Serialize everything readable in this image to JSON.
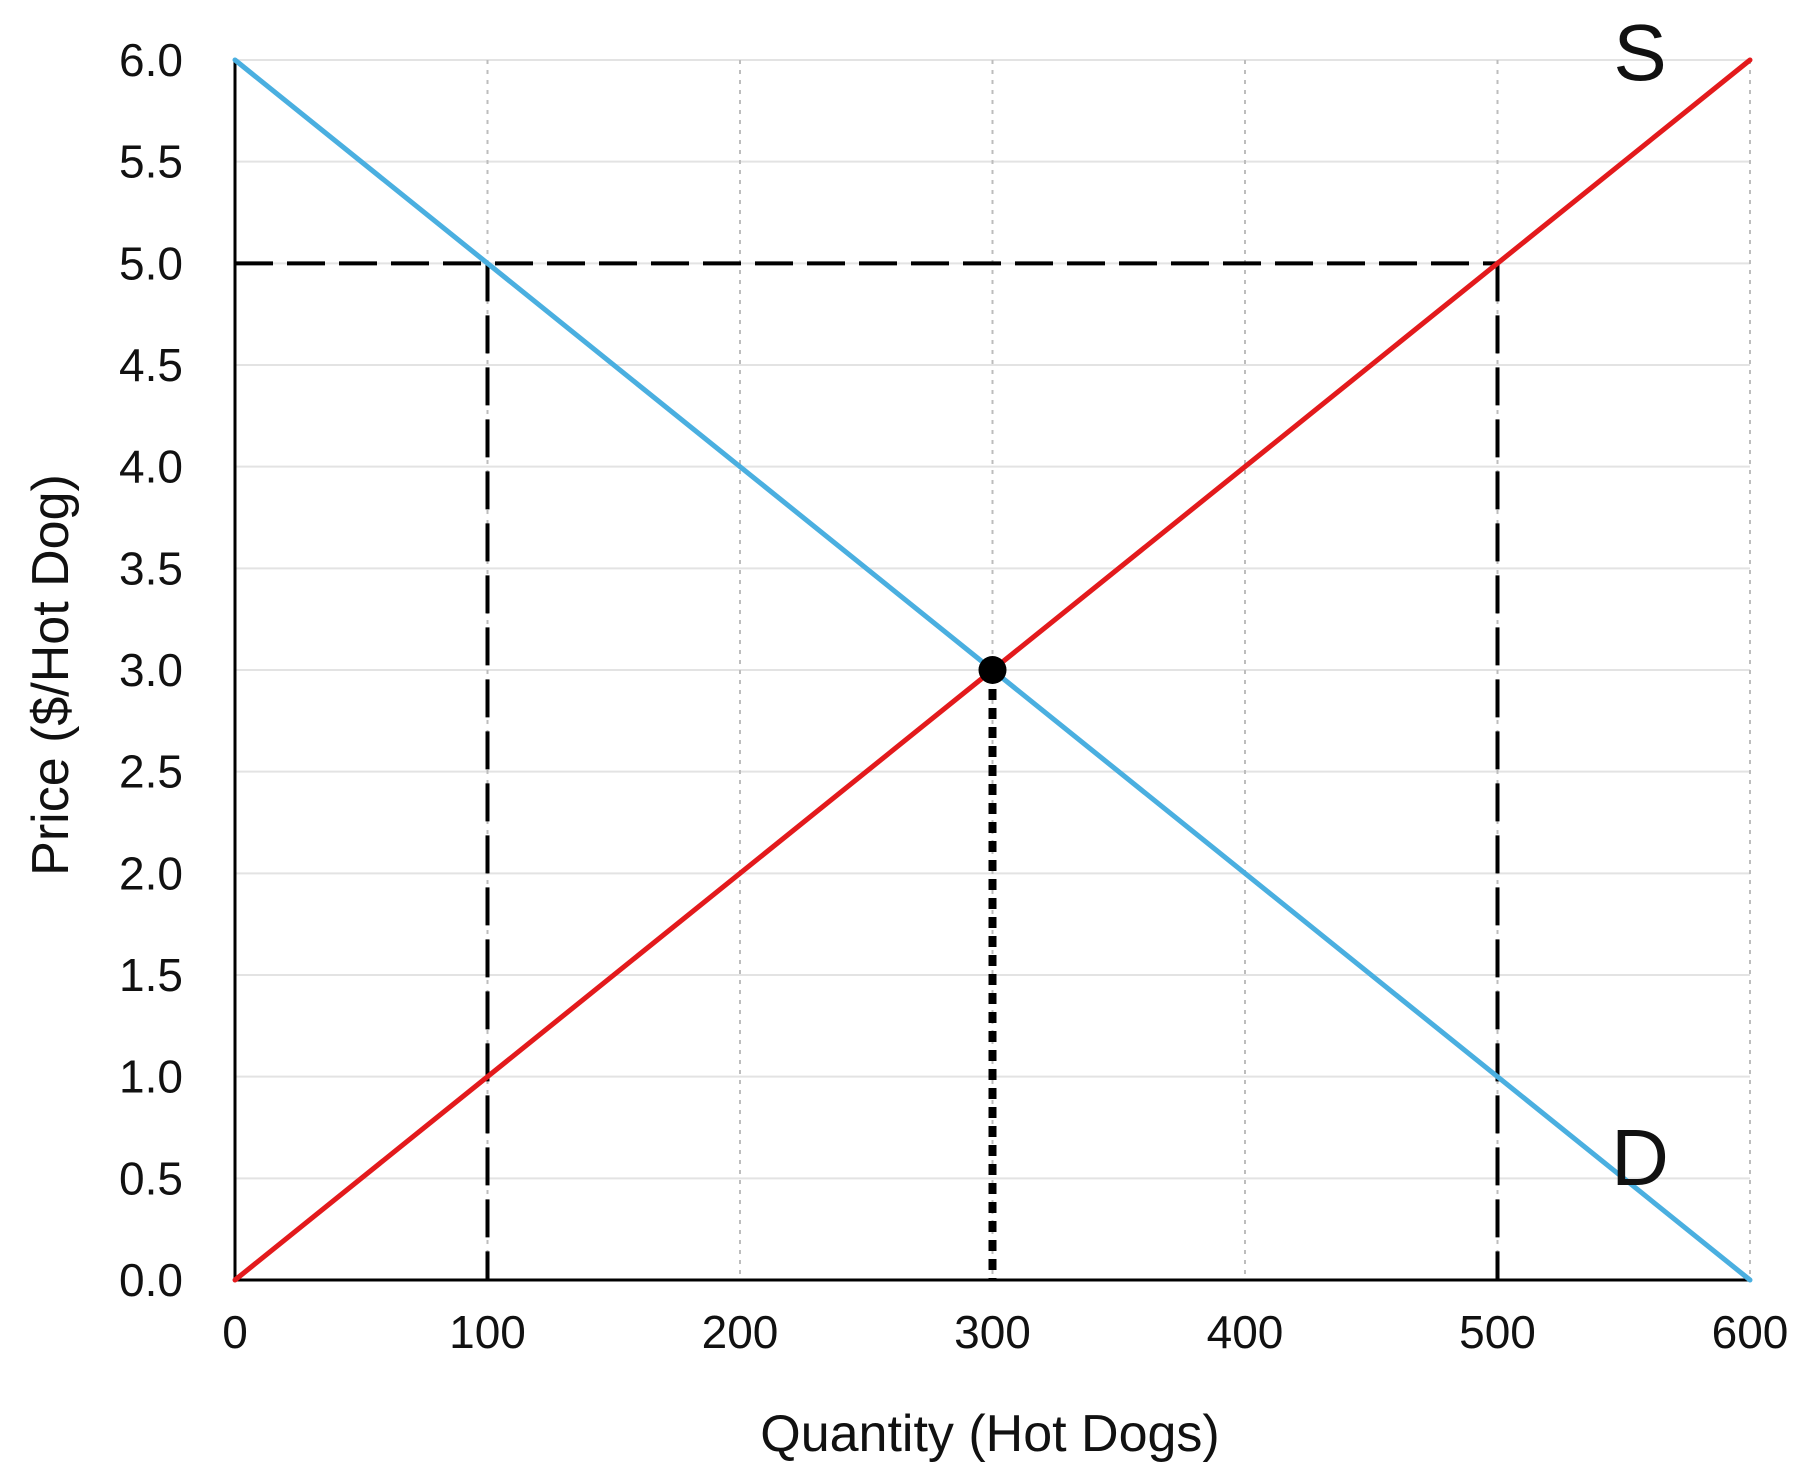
{
  "chart_data": {
    "type": "line",
    "title": "",
    "xlabel": "Quantity (Hot Dogs)",
    "ylabel": "Price ($/Hot Dog)",
    "xlim": [
      0,
      600
    ],
    "ylim": [
      0,
      6
    ],
    "x_ticks": [
      "0",
      "100",
      "200",
      "300",
      "400",
      "500",
      "600"
    ],
    "y_ticks": [
      "0.0",
      "0.5",
      "1.0",
      "1.5",
      "2.0",
      "2.5",
      "3.0",
      "3.5",
      "4.0",
      "4.5",
      "5.0",
      "5.5",
      "6.0"
    ],
    "x_tick_values": [
      0,
      100,
      200,
      300,
      400,
      500,
      600
    ],
    "y_tick_values": [
      0,
      0.5,
      1,
      1.5,
      2,
      2.5,
      3,
      3.5,
      4,
      4.5,
      5,
      5.5,
      6
    ],
    "grid": true,
    "series": [
      {
        "name": "S",
        "color": "#e31a1c",
        "points": [
          [
            0,
            0
          ],
          [
            600,
            6
          ]
        ]
      },
      {
        "name": "D",
        "color": "#4aafe0",
        "points": [
          [
            0,
            6
          ],
          [
            600,
            0
          ]
        ]
      }
    ],
    "equilibrium": {
      "x": 300,
      "y": 3
    },
    "price_line": {
      "y": 5,
      "x_from": 0,
      "x_to": 500
    },
    "quantity_lines": [
      {
        "x": 100,
        "y_from": 0,
        "y_to": 5,
        "style": "dashed"
      },
      {
        "x": 500,
        "y_from": 0,
        "y_to": 5,
        "style": "dashed"
      },
      {
        "x": 300,
        "y_from": 0,
        "y_to": 3,
        "style": "dotted"
      }
    ]
  }
}
